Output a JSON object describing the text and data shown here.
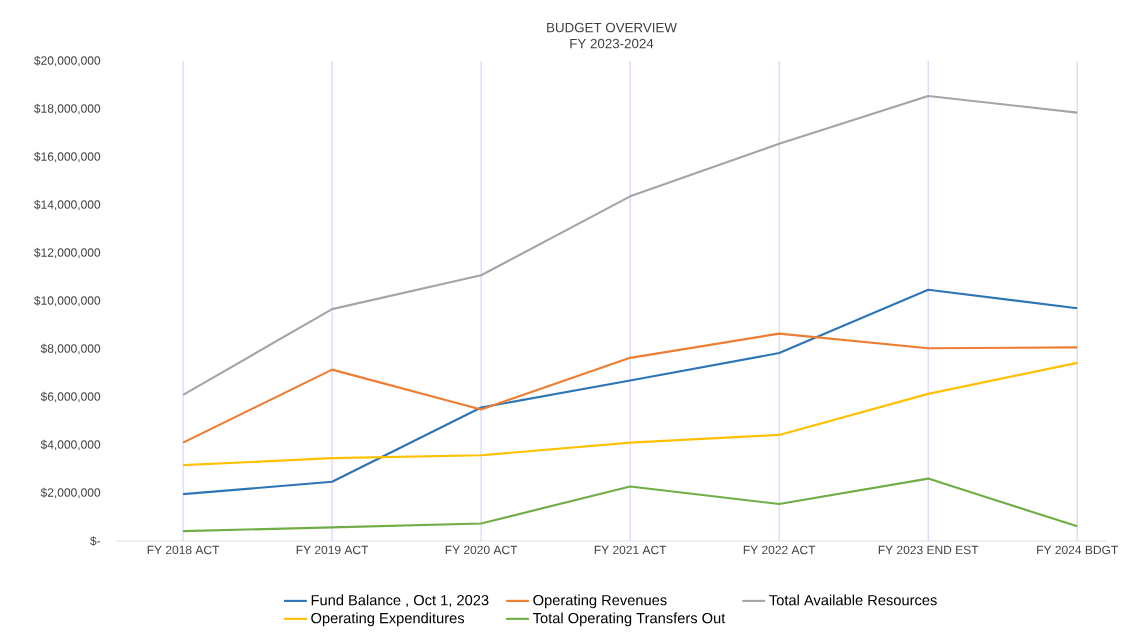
{
  "chart_data": {
    "type": "line",
    "title": "BUDGET OVERVIEW",
    "subtitle": "FY 2023-2024",
    "categories": [
      "FY 2018 ACT",
      "FY 2019 ACT",
      "FY 2020 ACT",
      "FY 2021 ACT",
      "FY 2022 ACT",
      "FY 2023 END EST",
      "FY 2024 BDGT"
    ],
    "series": [
      {
        "name": "Fund Balance , Oct 1, 2023",
        "color": "#2e75b6",
        "values": [
          1950000,
          2470000,
          5560000,
          6690000,
          7830000,
          10470000,
          9700000
        ]
      },
      {
        "name": "Operating Revenues",
        "color": "#ed7d31",
        "values": [
          4100000,
          7140000,
          5480000,
          7630000,
          8640000,
          8030000,
          8070000
        ]
      },
      {
        "name": "Total Available Resources",
        "color": "#a5a5a5",
        "values": [
          6090000,
          9660000,
          11070000,
          14360000,
          16550000,
          18540000,
          17850000
        ]
      },
      {
        "name": "Operating Expenditures",
        "color": "#ffc000",
        "values": [
          3160000,
          3450000,
          3570000,
          4100000,
          4420000,
          6130000,
          7420000
        ]
      },
      {
        "name": "Total Operating Transfers Out",
        "color": "#70ad47",
        "values": [
          410000,
          570000,
          730000,
          2270000,
          1540000,
          2600000,
          610000
        ]
      }
    ],
    "ylim": [
      0,
      20000000
    ],
    "yticks": [
      {
        "value": 0,
        "label": "$-"
      },
      {
        "value": 2000000,
        "label": "$2,000,000"
      },
      {
        "value": 4000000,
        "label": "$4,000,000"
      },
      {
        "value": 6000000,
        "label": "$6,000,000"
      },
      {
        "value": 8000000,
        "label": "$8,000,000"
      },
      {
        "value": 10000000,
        "label": "$10,000,000"
      },
      {
        "value": 12000000,
        "label": "$12,000,000"
      },
      {
        "value": 14000000,
        "label": "$14,000,000"
      },
      {
        "value": 16000000,
        "label": "$16,000,000"
      },
      {
        "value": 18000000,
        "label": "$18,000,000"
      },
      {
        "value": 20000000,
        "label": "$20,000,000"
      }
    ],
    "grid": "x",
    "legend": "bottom",
    "marker": "none",
    "line_style": "solid"
  }
}
